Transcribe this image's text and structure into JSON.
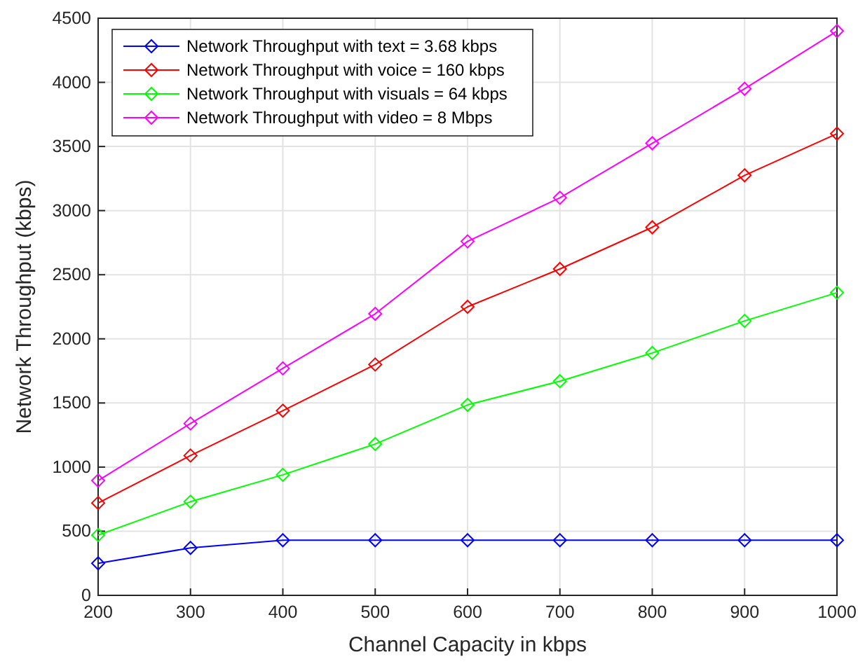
{
  "chart_data": {
    "type": "line",
    "xlabel": "Channel Capacity in kbps",
    "ylabel": "Network Throughput (kbps)",
    "x": [
      200,
      300,
      400,
      500,
      600,
      700,
      800,
      900,
      1000
    ],
    "series": [
      {
        "name": "Network Throughput with text = 3.68 kbps",
        "color": "#0000ff",
        "values": [
          250,
          370,
          430,
          430,
          430,
          430,
          430,
          430,
          430
        ]
      },
      {
        "name": "Network Throughput with voice = 160 kbps",
        "color": "#ff0000",
        "values": [
          720,
          1090,
          1440,
          1800,
          2250,
          2545,
          2870,
          3275,
          3600
        ]
      },
      {
        "name": "Network Throughput with visuals = 64 kbps",
        "color": "#00ff00",
        "values": [
          470,
          730,
          940,
          1180,
          1485,
          1670,
          1890,
          2140,
          2360
        ]
      },
      {
        "name": "Network Throughput with video = 8 Mbps",
        "color": "#ff00ff",
        "values": [
          895,
          1340,
          1770,
          2195,
          2760,
          3100,
          3525,
          3950,
          4400
        ]
      }
    ],
    "xlim": [
      200,
      1000
    ],
    "xticks": [
      200,
      300,
      400,
      500,
      600,
      700,
      800,
      900,
      1000
    ],
    "ylim": [
      0,
      4500
    ],
    "yticks": [
      0,
      500,
      1000,
      1500,
      2000,
      2500,
      3000,
      3500,
      4000,
      4500
    ],
    "grid": true,
    "legend": "top left",
    "marker": "diamond",
    "line_style": "solid"
  }
}
